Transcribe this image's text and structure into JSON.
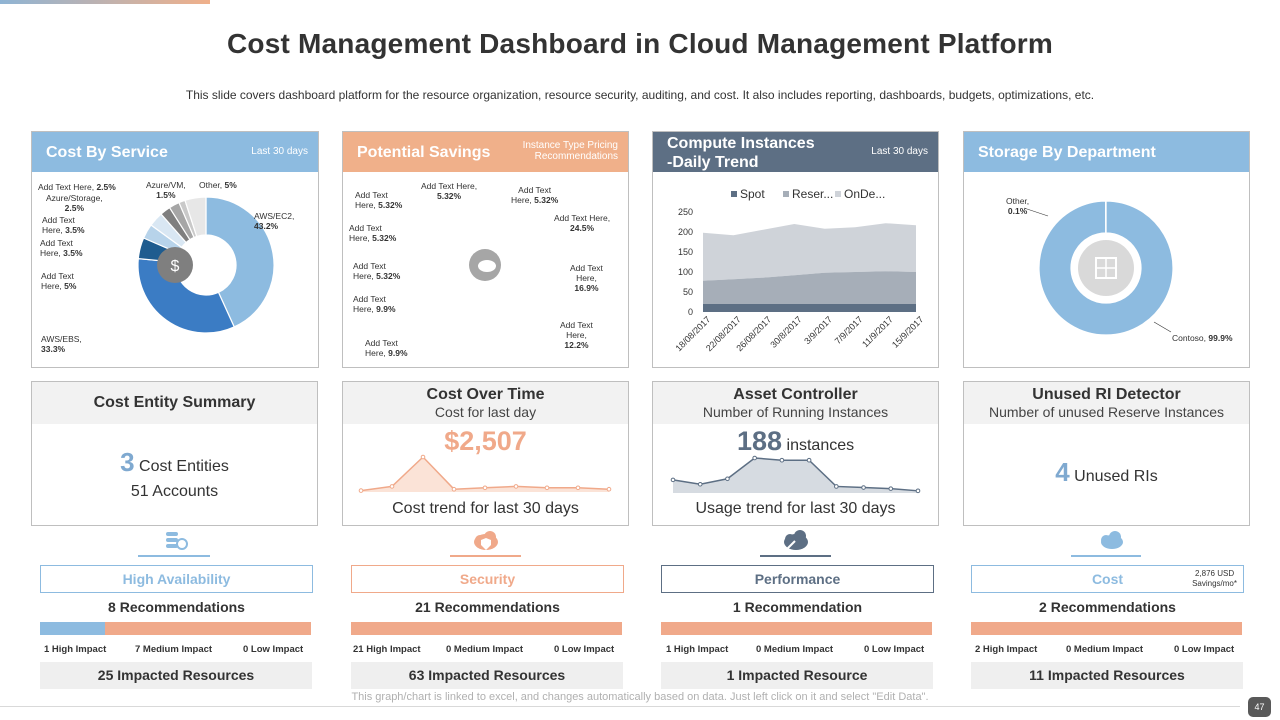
{
  "title": "Cost Management Dashboard in Cloud Management Platform",
  "subtitle": "This slide covers dashboard platform for the resource organization, resource security, auditing, and cost. It also includes reporting, dashboards, budgets, optimizations, etc.",
  "colors": {
    "blue": "#8dbbe0",
    "orange": "#f0b08a",
    "slate": "#5d6f84",
    "dark_orange": "#b54c1c",
    "gray_bg": "#efefef"
  },
  "panels": {
    "cost_by_service": {
      "title": "Cost By Service",
      "note": "Last 30 days",
      "icon": "money-bag-hand-icon",
      "labels": [
        {
          "name": "Add Text Here,",
          "value": "2.5%"
        },
        {
          "name": "Azure/VM,",
          "value": "1.5%"
        },
        {
          "name": "Other,",
          "value": "5%"
        },
        {
          "name": "Azure/Storage,",
          "value": "2.5%"
        },
        {
          "name": "Add Text Here,",
          "value": "3.5%"
        },
        {
          "name": "Add Text Here,",
          "value": "3.5%"
        },
        {
          "name": "Add Text Here,",
          "value": "5%"
        },
        {
          "name": "AWS/EBS,",
          "value": "33.3%"
        },
        {
          "name": "AWS/EC2,",
          "value": "43.2%"
        }
      ]
    },
    "potential_savings": {
      "title": "Potential Savings",
      "note_line1": "Instance Type Pricing",
      "note_line2": "Recommendations",
      "icon": "piggy-bank-icon",
      "labels": [
        {
          "name": "Add Text Here,",
          "value": "5.32%"
        },
        {
          "name": "Add Text Here,",
          "value": "5.32%"
        },
        {
          "name": "Add Text Here,",
          "value": "5.32%"
        },
        {
          "name": "Add Text Here,",
          "value": "5.32%"
        },
        {
          "name": "Add Text Here,",
          "value": "5.32%"
        },
        {
          "name": "Add Text Here,",
          "value": "24.5%"
        },
        {
          "name": "Add Text Here,",
          "value": "16.9%"
        },
        {
          "name": "Add Text Here,",
          "value": "9.9%"
        },
        {
          "name": "Add Text Here,",
          "value": "12.2%"
        },
        {
          "name": "Add Text Here,",
          "value": "9.9%"
        }
      ]
    },
    "compute_instances": {
      "title_line1": "Compute Instances",
      "title_line2": "-Daily Trend",
      "note": "Last 30 days"
    },
    "storage_by_department": {
      "title": "Storage By Department",
      "icon": "server-grid-icon",
      "labels": [
        {
          "name": "Other,",
          "value": "0.1%"
        },
        {
          "name": "Contoso,",
          "value": "99.9%"
        }
      ]
    }
  },
  "chart_data": [
    {
      "type": "pie",
      "title": "Cost By Service",
      "categories": [
        "AWS/EC2",
        "AWS/EBS",
        "Add Text Here",
        "Add Text Here",
        "Add Text Here",
        "Azure/Storage",
        "Add Text Here",
        "Azure/VM",
        "Other"
      ],
      "values": [
        43.2,
        33.3,
        5,
        3.5,
        3.5,
        2.5,
        2.5,
        1.5,
        5
      ],
      "colors": [
        "#8dbbe0",
        "#3b7cc4",
        "#1f5c8f",
        "#b7d3ea",
        "#d9e7f3",
        "#7f7f7f",
        "#a6a6a6",
        "#c9c9c9",
        "#e7e7e7"
      ]
    },
    {
      "type": "pie",
      "title": "Potential Savings",
      "categories": [
        "Add Text Here",
        "Add Text Here",
        "Add Text Here",
        "Add Text Here",
        "Add Text Here",
        "Add Text Here",
        "Add Text Here",
        "Add Text Here",
        "Add Text Here",
        "Add Text Here"
      ],
      "values": [
        24.5,
        16.9,
        12.2,
        9.9,
        9.9,
        5.32,
        5.32,
        5.32,
        5.32,
        5.32
      ],
      "colors": [
        "#f0a98a",
        "#e8733a",
        "#b54c1c",
        "#f5c5af",
        "#fae0d3",
        "#d9d9d9",
        "#bfbfbf",
        "#a6a6a6",
        "#7f7f7f",
        "#e7e7e7"
      ]
    },
    {
      "type": "area",
      "title": "Compute Instances -Daily Trend",
      "categories": [
        "18/08/2017",
        "22/08/2017",
        "26/08/2017",
        "30/8/2017",
        "3/9/2017",
        "7/9/2017",
        "11/9/2017",
        "15/9/2017"
      ],
      "series": [
        {
          "name": "Spot",
          "values": [
            20,
            20,
            20,
            20,
            20,
            20,
            20,
            20
          ],
          "color": "#5d6f84"
        },
        {
          "name": "Reser...",
          "values": [
            58,
            62,
            66,
            72,
            78,
            80,
            82,
            80
          ],
          "color": "#a6aeb8"
        },
        {
          "name": "OnDe...",
          "values": [
            120,
            110,
            120,
            128,
            110,
            112,
            120,
            117
          ],
          "color": "#cfd3d9"
        }
      ],
      "ylim": [
        0,
        250
      ],
      "yticks": [
        "250",
        "200",
        "150",
        "100",
        "50",
        "0"
      ],
      "stacked": true
    },
    {
      "type": "pie",
      "title": "Storage By Department",
      "categories": [
        "Contoso",
        "Other"
      ],
      "values": [
        99.9,
        0.1
      ],
      "colors": [
        "#8dbbe0",
        "#595959"
      ]
    },
    {
      "type": "line",
      "title": "Cost trend for last 30 days",
      "values": [
        1,
        4,
        25,
        2,
        3,
        4,
        3,
        3,
        2
      ]
    },
    {
      "type": "line",
      "title": "Usage trend for last 30 days",
      "values": [
        12,
        8,
        13,
        32,
        30,
        30,
        6,
        5,
        4,
        2
      ]
    }
  ],
  "cards": [
    {
      "title": "Cost Entity Summary",
      "big": "3",
      "big_suffix": "Cost Entities",
      "line2": "51 Accounts"
    },
    {
      "title": "Cost Over Time",
      "sub": "Cost for last day",
      "big": "$2,507",
      "bottom": "Cost trend for last 30 days"
    },
    {
      "title": "Asset Controller",
      "sub": "Number of Running Instances",
      "big": "188",
      "big_suffix": "instances",
      "bottom": "Usage trend for last 30 days"
    },
    {
      "title": "Unused RI Detector",
      "sub": "Number of unused Reserve Instances",
      "big": "4",
      "big_suffix": "Unused RIs"
    }
  ],
  "recommendations": [
    {
      "category": "High Availability",
      "icon": "database-gear-icon",
      "count": "8 Recommendations",
      "high": "1 High Impact",
      "medium": "7 Medium Impact",
      "low": "0 Low Impact",
      "resources": "25 Impacted Resources",
      "bar_fill": 0.24
    },
    {
      "category": "Security",
      "icon": "cloud-shield-icon",
      "count": "21 Recommendations",
      "high": "21 High Impact",
      "medium": "0 Medium Impact",
      "low": "0 Low Impact",
      "resources": "63 Impacted Resources",
      "bar_fill": 1.0
    },
    {
      "category": "Performance",
      "icon": "cloud-wrench-icon",
      "count": "1 Recommendation",
      "high": "1 High Impact",
      "medium": "0 Medium Impact",
      "low": "0 Low Impact",
      "resources": "1 Impacted Resource",
      "bar_fill": 1.0
    },
    {
      "category": "Cost",
      "icon": "cloud-dollar-icon",
      "count": "2 Recommendations",
      "high": "2 High Impact",
      "medium": "0 Medium Impact",
      "low": "0 Low Impact",
      "resources": "11 Impacted Resources",
      "bar_fill": 1.0,
      "savings_line1": "2,876 USD",
      "savings_line2": "Savings/mo*"
    }
  ],
  "footnote": "This graph/chart is linked to excel, and changes automatically based on data. Just left click on it and select \"Edit Data\".",
  "page_number": "47"
}
